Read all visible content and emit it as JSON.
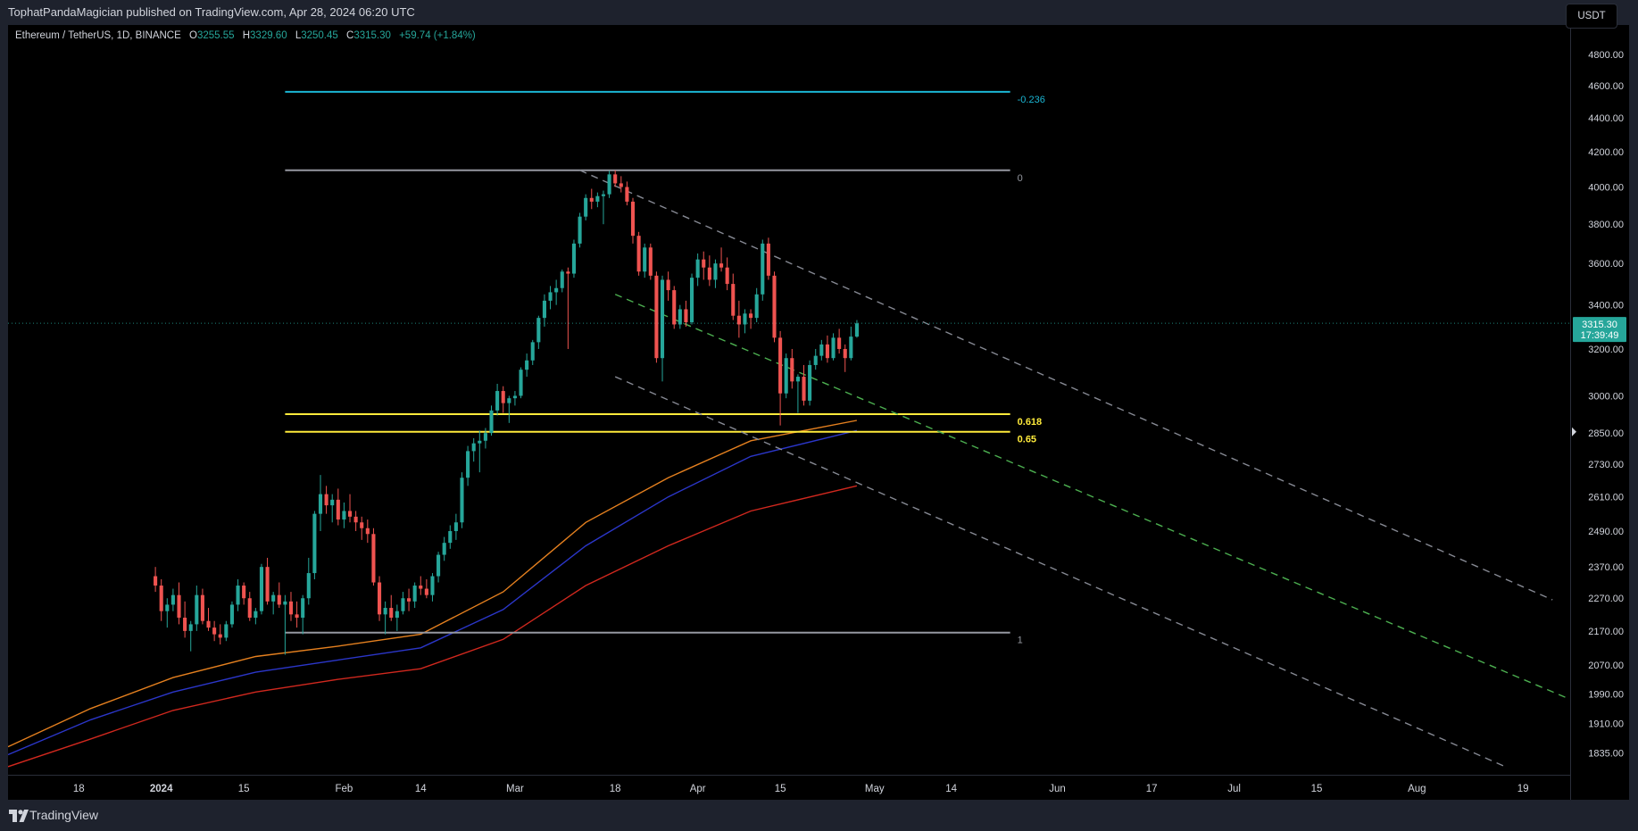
{
  "header": {
    "publish_line": "TophatPandaMagician published on TradingView.com, Apr 28, 2024 06:20 UTC"
  },
  "legend": {
    "symbol": "Ethereum / TetherUS, 1D, BINANCE",
    "open_label": "O",
    "open": "3255.55",
    "high_label": "H",
    "high": "3329.60",
    "low_label": "L",
    "low": "3250.45",
    "close_label": "C",
    "close": "3315.30",
    "change": "+59.74 (+1.84%)"
  },
  "currency": "USDT",
  "price_badge": {
    "price": "3315.30",
    "countdown": "17:39:49",
    "color": "#26a69a"
  },
  "footer": {
    "brand": "TradingView",
    "logo_icon": "tradingview-logo-icon"
  },
  "colors": {
    "up": "#26a69a",
    "down": "#ef5350",
    "fib_cyan": "#1bb6d4",
    "fib_grey": "#9598a1",
    "fib_yellow": "#ffeb3b",
    "ema_orange": "#e5801f",
    "ema_blue": "#2b36c9",
    "ema_red": "#d0281e",
    "channel_grey": "#868993",
    "channel_green": "#4caf50"
  },
  "chart_data": {
    "type": "candlestick",
    "symbol": "ETHUSDT",
    "y_axis": {
      "scale": "log",
      "ticks": [
        "4800.00",
        "4600.00",
        "4400.00",
        "4200.00",
        "4000.00",
        "3800.00",
        "3600.00",
        "3400.00",
        "3200.00",
        "3000.00",
        "2850.00",
        "2730.00",
        "2610.00",
        "2490.00",
        "2370.00",
        "2270.00",
        "2170.00",
        "2070.00",
        "1990.00",
        "1910.00",
        "1835.00"
      ],
      "range": [
        1780,
        5000
      ]
    },
    "x_axis": {
      "ticks": [
        "18",
        "2024",
        "15",
        "Feb",
        "14",
        "Mar",
        "18",
        "Apr",
        "15",
        "May",
        "14",
        "Jun",
        "17",
        "Jul",
        "15",
        "Aug",
        "19"
      ],
      "tick_dates": [
        "2023-12-18",
        "2024-01-01",
        "2024-01-15",
        "2024-02-01",
        "2024-02-14",
        "2024-03-01",
        "2024-03-18",
        "2024-04-01",
        "2024-04-15",
        "2024-05-01",
        "2024-05-14",
        "2024-06-01",
        "2024-06-17",
        "2024-07-01",
        "2024-07-15",
        "2024-08-01",
        "2024-08-19"
      ],
      "range": [
        "2023-12-06",
        "2024-08-27"
      ]
    },
    "fib_levels": [
      {
        "label": "-0.236",
        "price": 4560,
        "color": "#1bb6d4"
      },
      {
        "label": "0",
        "price": 4093,
        "color": "#9598a1"
      },
      {
        "label": "0.618",
        "price": 2925,
        "color": "#ffeb3b"
      },
      {
        "label": "0.65",
        "price": 2855,
        "color": "#ffeb3b"
      },
      {
        "label": "1",
        "price": 2165,
        "color": "#9598a1"
      }
    ],
    "fib_range": [
      "2024-01-22",
      "2024-05-24"
    ],
    "current_price": 3315.3,
    "candles_end": "2024-04-28",
    "candles": [
      [
        2340,
        2370,
        2290,
        2310
      ],
      [
        2310,
        2330,
        2200,
        2230
      ],
      [
        2230,
        2270,
        2180,
        2250
      ],
      [
        2250,
        2300,
        2230,
        2280
      ],
      [
        2280,
        2320,
        2190,
        2210
      ],
      [
        2210,
        2260,
        2150,
        2170
      ],
      [
        2170,
        2200,
        2110,
        2190
      ],
      [
        2190,
        2310,
        2170,
        2280
      ],
      [
        2280,
        2300,
        2190,
        2200
      ],
      [
        2200,
        2240,
        2170,
        2180
      ],
      [
        2180,
        2200,
        2140,
        2160
      ],
      [
        2160,
        2190,
        2130,
        2150
      ],
      [
        2150,
        2200,
        2140,
        2190
      ],
      [
        2190,
        2260,
        2180,
        2250
      ],
      [
        2250,
        2330,
        2230,
        2310
      ],
      [
        2310,
        2320,
        2250,
        2270
      ],
      [
        2270,
        2290,
        2200,
        2210
      ],
      [
        2210,
        2240,
        2190,
        2230
      ],
      [
        2230,
        2380,
        2220,
        2370
      ],
      [
        2370,
        2400,
        2250,
        2260
      ],
      [
        2260,
        2290,
        2220,
        2280
      ],
      [
        2280,
        2320,
        2240,
        2250
      ],
      [
        2250,
        2280,
        2100,
        2260
      ],
      [
        2260,
        2290,
        2200,
        2220
      ],
      [
        2220,
        2260,
        2180,
        2210
      ],
      [
        2210,
        2280,
        2160,
        2270
      ],
      [
        2270,
        2400,
        2250,
        2350
      ],
      [
        2350,
        2560,
        2330,
        2550
      ],
      [
        2550,
        2690,
        2490,
        2620
      ],
      [
        2620,
        2650,
        2550,
        2580
      ],
      [
        2580,
        2620,
        2520,
        2600
      ],
      [
        2600,
        2640,
        2510,
        2530
      ],
      [
        2530,
        2590,
        2500,
        2560
      ],
      [
        2560,
        2620,
        2520,
        2540
      ],
      [
        2540,
        2560,
        2490,
        2520
      ],
      [
        2520,
        2540,
        2460,
        2500
      ],
      [
        2500,
        2530,
        2450,
        2480
      ],
      [
        2480,
        2500,
        2310,
        2320
      ],
      [
        2320,
        2340,
        2200,
        2220
      ],
      [
        2220,
        2260,
        2160,
        2240
      ],
      [
        2240,
        2280,
        2200,
        2210
      ],
      [
        2210,
        2250,
        2170,
        2230
      ],
      [
        2230,
        2290,
        2220,
        2270
      ],
      [
        2270,
        2300,
        2230,
        2260
      ],
      [
        2260,
        2320,
        2240,
        2310
      ],
      [
        2310,
        2340,
        2280,
        2300
      ],
      [
        2300,
        2330,
        2270,
        2280
      ],
      [
        2280,
        2350,
        2260,
        2340
      ],
      [
        2340,
        2420,
        2320,
        2410
      ],
      [
        2410,
        2470,
        2390,
        2450
      ],
      [
        2450,
        2510,
        2430,
        2490
      ],
      [
        2490,
        2550,
        2460,
        2520
      ],
      [
        2520,
        2700,
        2500,
        2680
      ],
      [
        2680,
        2800,
        2650,
        2780
      ],
      [
        2780,
        2830,
        2740,
        2810
      ],
      [
        2810,
        2860,
        2700,
        2820
      ],
      [
        2820,
        2870,
        2790,
        2850
      ],
      [
        2850,
        2960,
        2840,
        2940
      ],
      [
        2940,
        3050,
        2920,
        3020
      ],
      [
        3020,
        3040,
        2930,
        2970
      ],
      [
        2970,
        3000,
        2890,
        2990
      ],
      [
        2990,
        3020,
        2960,
        3000
      ],
      [
        3000,
        3120,
        2990,
        3110
      ],
      [
        3110,
        3180,
        3080,
        3150
      ],
      [
        3150,
        3240,
        3130,
        3230
      ],
      [
        3230,
        3350,
        3200,
        3340
      ],
      [
        3340,
        3450,
        3300,
        3420
      ],
      [
        3420,
        3490,
        3380,
        3460
      ],
      [
        3460,
        3520,
        3400,
        3480
      ],
      [
        3480,
        3570,
        3460,
        3560
      ],
      [
        3560,
        3580,
        3200,
        3550
      ],
      [
        3550,
        3720,
        3530,
        3700
      ],
      [
        3700,
        3860,
        3680,
        3840
      ],
      [
        3840,
        3960,
        3820,
        3940
      ],
      [
        3940,
        3990,
        3880,
        3920
      ],
      [
        3920,
        3970,
        3890,
        3950
      ],
      [
        3950,
        3980,
        3800,
        3960
      ],
      [
        3960,
        4090,
        3940,
        4070
      ],
      [
        4070,
        4093,
        4000,
        4020
      ],
      [
        4020,
        4060,
        3970,
        4000
      ],
      [
        4000,
        4030,
        3900,
        3920
      ],
      [
        3920,
        3940,
        3700,
        3740
      ],
      [
        3740,
        3760,
        3540,
        3560
      ],
      [
        3560,
        3700,
        3530,
        3680
      ],
      [
        3680,
        3700,
        3520,
        3540
      ],
      [
        3540,
        3560,
        3140,
        3160
      ],
      [
        3160,
        3540,
        3060,
        3520
      ],
      [
        3520,
        3560,
        3420,
        3470
      ],
      [
        3470,
        3490,
        3290,
        3310
      ],
      [
        3310,
        3400,
        3290,
        3380
      ],
      [
        3380,
        3420,
        3300,
        3320
      ],
      [
        3320,
        3550,
        3310,
        3530
      ],
      [
        3530,
        3650,
        3490,
        3620
      ],
      [
        3620,
        3660,
        3520,
        3580
      ],
      [
        3580,
        3640,
        3490,
        3520
      ],
      [
        3520,
        3620,
        3480,
        3600
      ],
      [
        3600,
        3680,
        3560,
        3580
      ],
      [
        3580,
        3630,
        3470,
        3500
      ],
      [
        3500,
        3550,
        3330,
        3350
      ],
      [
        3350,
        3420,
        3250,
        3310
      ],
      [
        3310,
        3380,
        3270,
        3360
      ],
      [
        3360,
        3380,
        3290,
        3340
      ],
      [
        3340,
        3480,
        3320,
        3450
      ],
      [
        3450,
        3720,
        3420,
        3700
      ],
      [
        3700,
        3730,
        3520,
        3540
      ],
      [
        3540,
        3560,
        3230,
        3250
      ],
      [
        3250,
        3280,
        2880,
        3010
      ],
      [
        3010,
        3180,
        2990,
        3160
      ],
      [
        3160,
        3200,
        3030,
        3060
      ],
      [
        3060,
        3090,
        2930,
        3080
      ],
      [
        3080,
        3130,
        2960,
        2980
      ],
      [
        2980,
        3150,
        2960,
        3130
      ],
      [
        3130,
        3200,
        3110,
        3170
      ],
      [
        3170,
        3240,
        3150,
        3220
      ],
      [
        3220,
        3260,
        3140,
        3160
      ],
      [
        3160,
        3270,
        3150,
        3250
      ],
      [
        3250,
        3290,
        3180,
        3200
      ],
      [
        3200,
        3220,
        3100,
        3160
      ],
      [
        3160,
        3300,
        3150,
        3255
      ],
      [
        3255,
        3330,
        3250,
        3315
      ]
    ],
    "ema_series": [
      {
        "color": "#e5801f",
        "points": [
          [
            "2023-12-06",
            1850
          ],
          [
            "2023-12-20",
            1950
          ],
          [
            "2024-01-03",
            2035
          ],
          [
            "2024-01-17",
            2095
          ],
          [
            "2024-01-31",
            2125
          ],
          [
            "2024-02-14",
            2160
          ],
          [
            "2024-02-28",
            2290
          ],
          [
            "2024-03-13",
            2520
          ],
          [
            "2024-03-27",
            2680
          ],
          [
            "2024-04-10",
            2820
          ],
          [
            "2024-04-28",
            2900
          ]
        ]
      },
      {
        "color": "#2b36c9",
        "points": [
          [
            "2023-12-06",
            1830
          ],
          [
            "2023-12-20",
            1920
          ],
          [
            "2024-01-03",
            1995
          ],
          [
            "2024-01-17",
            2050
          ],
          [
            "2024-01-31",
            2085
          ],
          [
            "2024-02-14",
            2120
          ],
          [
            "2024-02-28",
            2235
          ],
          [
            "2024-03-13",
            2440
          ],
          [
            "2024-03-27",
            2610
          ],
          [
            "2024-04-10",
            2760
          ],
          [
            "2024-04-28",
            2860
          ]
        ]
      },
      {
        "color": "#d0281e",
        "points": [
          [
            "2023-12-06",
            1800
          ],
          [
            "2023-12-20",
            1870
          ],
          [
            "2024-01-03",
            1945
          ],
          [
            "2024-01-17",
            1995
          ],
          [
            "2024-01-31",
            2030
          ],
          [
            "2024-02-14",
            2060
          ],
          [
            "2024-02-28",
            2145
          ],
          [
            "2024-03-13",
            2310
          ],
          [
            "2024-03-27",
            2440
          ],
          [
            "2024-04-10",
            2560
          ],
          [
            "2024-04-28",
            2650
          ]
        ]
      }
    ],
    "channels": [
      {
        "color": "#868993",
        "from": [
          "2024-03-12",
          4093
        ],
        "to": [
          "2024-08-24",
          2265
        ]
      },
      {
        "color": "#4caf50",
        "from": [
          "2024-03-18",
          3450
        ],
        "to": [
          "2024-08-27",
          1975
        ]
      },
      {
        "color": "#868993",
        "from": [
          "2024-03-18",
          3080
        ],
        "to": [
          "2024-08-16",
          1800
        ]
      }
    ]
  }
}
